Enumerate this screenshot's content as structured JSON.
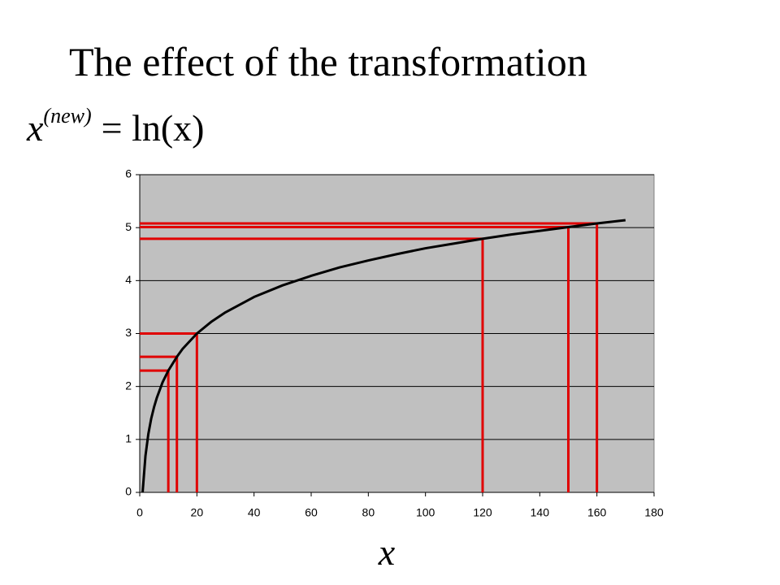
{
  "chart_data": {
    "type": "line",
    "title": "The effect of the transformation",
    "formula": {
      "base": "x",
      "superscript": "(new)",
      "rhs": "= ln(x)"
    },
    "xlabel": "x",
    "series": [
      {
        "color": "#000000",
        "x": [
          1,
          2,
          3,
          4,
          5,
          6,
          8,
          10,
          13,
          15,
          20,
          25,
          30,
          40,
          50,
          60,
          70,
          80,
          90,
          100,
          110,
          120,
          130,
          140,
          150,
          160,
          170
        ],
        "values": [
          0,
          0.69,
          1.1,
          1.39,
          1.61,
          1.79,
          2.08,
          2.3,
          2.56,
          2.71,
          3.0,
          3.22,
          3.4,
          3.69,
          3.91,
          4.09,
          4.25,
          4.38,
          4.5,
          4.61,
          4.7,
          4.79,
          4.87,
          4.94,
          5.01,
          5.08,
          5.14
        ]
      }
    ],
    "guides": {
      "color": "#e00000",
      "x": [
        10,
        13,
        20,
        120,
        150,
        160
      ],
      "values": [
        2.3,
        2.56,
        3.0,
        4.79,
        5.01,
        5.08
      ]
    },
    "xlim": [
      0,
      180
    ],
    "xticks": [
      0,
      20,
      40,
      60,
      80,
      100,
      120,
      140,
      160,
      180
    ],
    "ylim": [
      0,
      6
    ],
    "yticks": [
      0,
      1,
      2,
      3,
      4,
      5,
      6
    ],
    "grid": true,
    "plot_background": "#c0c0c0"
  }
}
